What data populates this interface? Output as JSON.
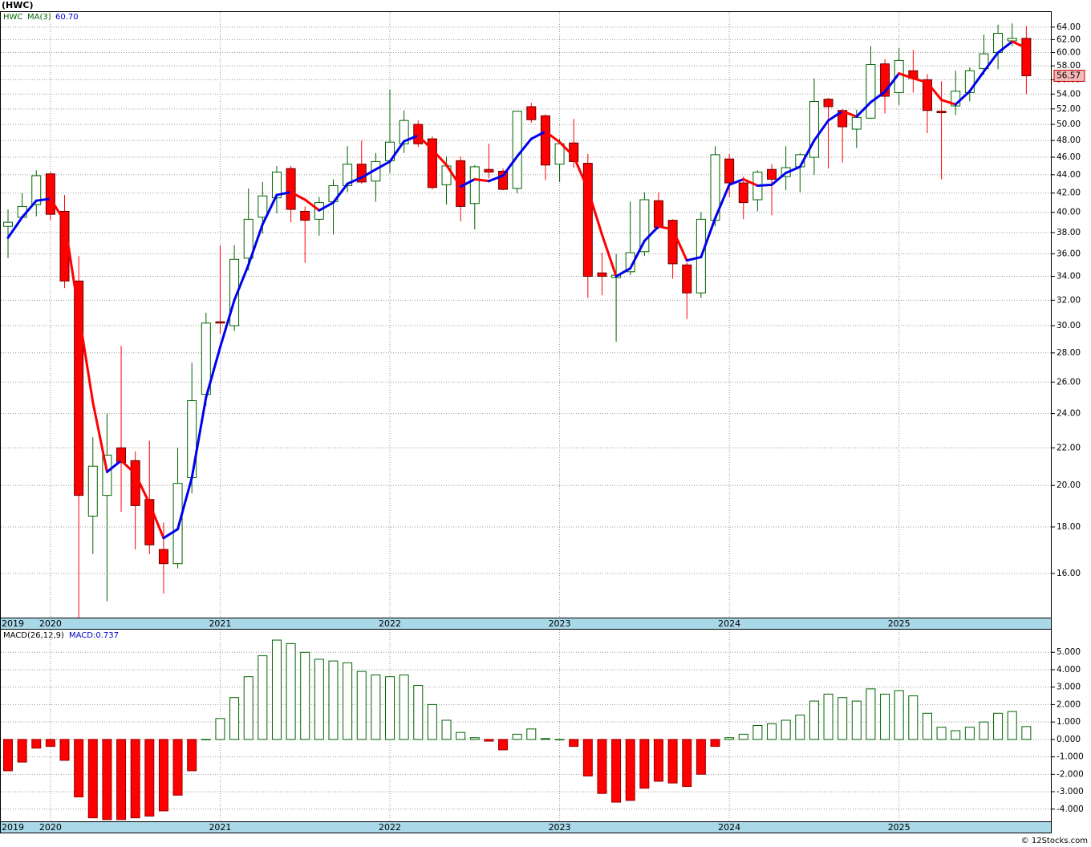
{
  "chart_data": [
    {
      "type": "candlestick",
      "title": "(HWC)",
      "symbol": "HWC",
      "ma_name": "MA(3)",
      "ma_label": "60.70",
      "log": true,
      "grid": true,
      "categories": [
        "2019",
        null,
        null,
        "2020",
        null,
        null,
        null,
        null,
        null,
        null,
        null,
        null,
        null,
        null,
        null,
        "2021",
        null,
        null,
        null,
        null,
        null,
        null,
        null,
        null,
        null,
        null,
        null,
        "2022",
        null,
        null,
        null,
        null,
        null,
        null,
        null,
        null,
        null,
        null,
        null,
        "2023",
        null,
        null,
        null,
        null,
        null,
        null,
        null,
        null,
        null,
        null,
        null,
        "2024",
        null,
        null,
        null,
        null,
        null,
        null,
        null,
        null,
        null,
        null,
        null,
        "2025",
        null,
        null,
        null,
        null,
        null,
        null,
        null,
        null,
        null
      ],
      "open": [
        38.6,
        39.5,
        40.8,
        44.1,
        40.1,
        33.6,
        18.5,
        19.5,
        22,
        21.3,
        19.3,
        17.0,
        16.4,
        20.4,
        25.2,
        30.3,
        30,
        35.6,
        39.5,
        41.5,
        44.7,
        40.1,
        39.3,
        41.1,
        42.8,
        45.2,
        43.3,
        45.6,
        47.6,
        50.0,
        48.2,
        42.9,
        45.6,
        40.9,
        44.6,
        44.4,
        42.5,
        52.3,
        51.1,
        45.2,
        47.7,
        45.3,
        34.3,
        33.9,
        34.4,
        36.2,
        41.2,
        39.2,
        35.0,
        32.6,
        39.2,
        45.8,
        43.1,
        41.3,
        44.6,
        43.8,
        44.9,
        46.0,
        53.3,
        51.8,
        49.4,
        50.8,
        58.3,
        54.2,
        57.3,
        56.0,
        51.7,
        52.4,
        54.2,
        57.6,
        60.0,
        61.8,
        62.2
      ],
      "high": [
        40.3,
        42,
        44.5,
        44.3,
        41.8,
        35.8,
        22.6,
        24,
        28.5,
        21.8,
        22.4,
        18.2,
        22,
        27.3,
        31.0,
        36.8,
        36.8,
        42.5,
        43.2,
        45,
        45.0,
        40.6,
        41.6,
        43.5,
        47.3,
        48,
        46.5,
        54.6,
        51.8,
        50.5,
        48.5,
        46.1,
        46.1,
        45.1,
        47.6,
        44.7,
        51.7,
        52.8,
        51.3,
        48.2,
        50.7,
        46.4,
        36.1,
        36.0,
        41.1,
        42.1,
        42.1,
        39.3,
        35.2,
        40.0,
        47.3,
        46.4,
        43.8,
        44.5,
        45.2,
        47.3,
        46.5,
        56.2,
        53.5,
        52,
        51.9,
        61.0,
        59.0,
        60.7,
        60.4,
        56.8,
        55.8,
        57.3,
        57.8,
        62.8,
        64.4,
        64.6,
        64.2
      ],
      "low": [
        35.6,
        39.4,
        39.6,
        39.2,
        33.0,
        14.3,
        16.8,
        14.9,
        18.7,
        17.0,
        16.8,
        15.2,
        16.2,
        19.6,
        24.5,
        29.4,
        29.6,
        34.5,
        37.9,
        39.9,
        39.0,
        35.2,
        37.7,
        37.8,
        42.1,
        43,
        41.1,
        44.2,
        46.5,
        47.2,
        42.4,
        40.8,
        39.1,
        38.3,
        43.6,
        42.3,
        42.0,
        50.2,
        43.4,
        43.2,
        44.8,
        32.2,
        32.4,
        28.8,
        34.1,
        35.8,
        38.3,
        33.8,
        30.5,
        32.2,
        38.6,
        41.6,
        39.3,
        40.1,
        39.7,
        42.3,
        42.1,
        44.0,
        44.7,
        45.4,
        47.1,
        50.7,
        51.4,
        52.5,
        54.2,
        48.9,
        43.5,
        51.2,
        53.0,
        56.7,
        57.5,
        61.0,
        54.0
      ],
      "close": [
        39.0,
        40.6,
        43.9,
        39.8,
        33.6,
        19.5,
        21.0,
        21.6,
        21.2,
        19.0,
        17.2,
        16.4,
        20.1,
        24.8,
        30.2,
        30.2,
        35.5,
        39.3,
        41.7,
        44.3,
        40.3,
        39.2,
        41.0,
        42.8,
        45.2,
        43.2,
        45.5,
        47.8,
        50.5,
        47.6,
        42.6,
        45.0,
        40.6,
        44.9,
        44.3,
        42.4,
        51.7,
        50.6,
        45.1,
        47.6,
        45.5,
        34.0,
        34.0,
        34.1,
        36.1,
        41.3,
        38.5,
        35.1,
        32.6,
        39.3,
        46.3,
        43.1,
        41.0,
        44.3,
        43.5,
        44.8,
        46.3,
        53.0,
        52.3,
        49.7,
        50.9,
        58.2,
        53.7,
        58.8,
        56.2,
        51.8,
        51.5,
        54.4,
        57.3,
        59.8,
        63.0,
        62.2,
        56.57
      ],
      "ma": [
        37.5,
        39.5,
        41.2,
        41.4,
        39.1,
        31.0,
        24.7,
        20.7,
        21.3,
        20.6,
        19.1,
        17.5,
        17.9,
        20.4,
        25.0,
        28.4,
        32.0,
        35.0,
        38.8,
        41.8,
        42.1,
        41.3,
        40.2,
        41.0,
        43.0,
        43.7,
        44.6,
        45.5,
        47.9,
        48.6,
        46.9,
        45.1,
        42.7,
        43.5,
        43.3,
        43.9,
        46.1,
        48.2,
        49.1,
        47.8,
        46.1,
        42.4,
        37.8,
        34.0,
        34.7,
        37.2,
        38.6,
        38.3,
        35.4,
        35.7,
        39.4,
        42.9,
        43.5,
        42.8,
        42.9,
        44.2,
        44.9,
        48.0,
        50.5,
        51.7,
        51.0,
        52.9,
        54.3,
        56.9,
        56.2,
        55.6,
        53.2,
        52.6,
        54.4,
        57.2,
        60.0,
        61.7,
        60.7
      ],
      "up_color": "#006400",
      "down_color": "#ff0000",
      "ma_up_color": "#0000ee",
      "ma_down_color": "#ff0000",
      "ylim": [
        14.3,
        66.5
      ],
      "yticks": [
        {
          "value": 16,
          "label": "16.00"
        },
        {
          "value": 18,
          "label": "18.00"
        },
        {
          "value": 20,
          "label": "20.00"
        },
        {
          "value": 22,
          "label": "22.00"
        },
        {
          "value": 24,
          "label": "24.00"
        },
        {
          "value": 26,
          "label": "26.00"
        },
        {
          "value": 28,
          "label": "28.00"
        },
        {
          "value": 30,
          "label": "30.00"
        },
        {
          "value": 32,
          "label": "32.00"
        },
        {
          "value": 34,
          "label": "34.00"
        },
        {
          "value": 36,
          "label": "36.00"
        },
        {
          "value": 38,
          "label": "38.00"
        },
        {
          "value": 40,
          "label": "40.00"
        },
        {
          "value": 42,
          "label": "42.00"
        },
        {
          "value": 44,
          "label": "44.00"
        },
        {
          "value": 46,
          "label": "46.00"
        },
        {
          "value": 48,
          "label": "48.00"
        },
        {
          "value": 50,
          "label": "50.00"
        },
        {
          "value": 52,
          "label": "52.00"
        },
        {
          "value": 54,
          "label": "54.00"
        },
        {
          "value": 56,
          "label": "56.00"
        },
        {
          "value": 58,
          "label": "58.00"
        },
        {
          "value": 60,
          "label": "60.00"
        },
        {
          "value": 62,
          "label": "62.00"
        },
        {
          "value": 64,
          "label": "64.00"
        }
      ]
    },
    {
      "type": "bar",
      "title": "MACD(26,12,9)",
      "value_label": "MACD:0.737",
      "grid": true,
      "pos_color": "#006400",
      "neg_color": "#ff0000",
      "values": [
        -1.8,
        -1.3,
        -0.5,
        -0.4,
        -1.2,
        -3.3,
        -4.5,
        -4.6,
        -4.6,
        -4.5,
        -4.4,
        -4.1,
        -3.2,
        -1.8,
        0.0,
        1.2,
        2.4,
        3.6,
        4.8,
        5.7,
        5.5,
        5.0,
        4.6,
        4.5,
        4.4,
        3.9,
        3.7,
        3.6,
        3.7,
        3.1,
        2.0,
        1.1,
        0.4,
        0.1,
        -0.1,
        -0.6,
        0.3,
        0.6,
        0.05,
        0.0,
        -0.4,
        -2.1,
        -3.1,
        -3.6,
        -3.5,
        -2.8,
        -2.4,
        -2.5,
        -2.7,
        -2.0,
        -0.4,
        0.1,
        0.3,
        0.8,
        0.9,
        1.1,
        1.4,
        2.2,
        2.6,
        2.4,
        2.2,
        2.9,
        2.6,
        2.8,
        2.5,
        1.5,
        0.7,
        0.5,
        0.7,
        1.0,
        1.5,
        1.6,
        0.737
      ],
      "ylim": [
        -4.7,
        6.3
      ],
      "yticks": [
        {
          "value": -4,
          "label": "-4.000"
        },
        {
          "value": -3,
          "label": "-3.000"
        },
        {
          "value": -2,
          "label": "-2.000"
        },
        {
          "value": -1,
          "label": "-1.000"
        },
        {
          "value": 0,
          "label": "0.000"
        },
        {
          "value": 1,
          "label": "1.000"
        },
        {
          "value": 2,
          "label": "2.000"
        },
        {
          "value": 3,
          "label": "3.000"
        },
        {
          "value": 4,
          "label": "4.000"
        },
        {
          "value": 5,
          "label": "5.000"
        }
      ]
    }
  ],
  "footer": "© 12Stocks.com"
}
